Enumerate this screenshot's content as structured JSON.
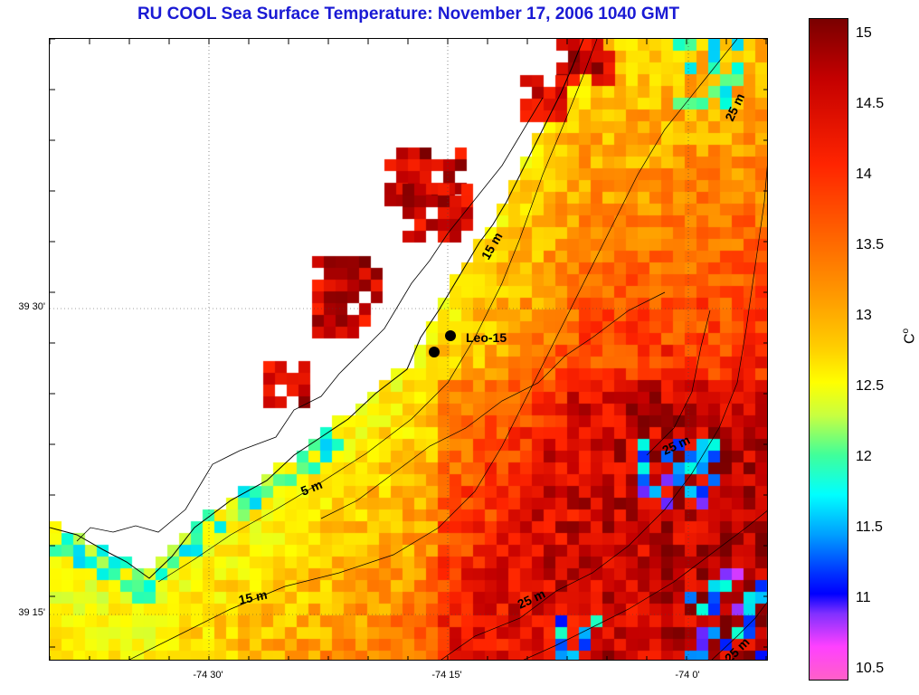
{
  "title": "RU COOL  Sea Surface Temperature:  November 17, 2006 1040 GMT",
  "map": {
    "lat_labels": [
      "39 30'",
      "39 15'"
    ],
    "lon_labels": [
      "-74 30'",
      "-74 15'",
      "-74 0'"
    ],
    "station": {
      "name": "Leo-15"
    },
    "contour_labels": [
      "5 m",
      "15 m",
      "15 m",
      "25 m",
      "25 m",
      "25 m",
      "25 m"
    ],
    "land_color": "#ffffff"
  },
  "colorbar": {
    "unit": "C",
    "unit_superscript": "o",
    "ticks": [
      "15",
      "14.5",
      "14",
      "13.5",
      "13",
      "12.5",
      "12",
      "11.5",
      "11",
      "10.5"
    ],
    "range": [
      10.4,
      15.1
    ]
  }
}
